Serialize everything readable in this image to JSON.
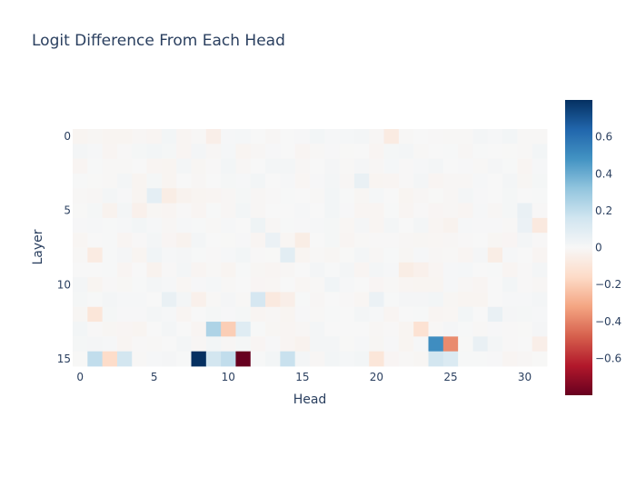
{
  "chart_data": {
    "type": "heatmap",
    "title": "Logit Difference From Each Head",
    "xlabel": "Head",
    "ylabel": "Layer",
    "x_range": [
      0,
      31
    ],
    "y_range": [
      0,
      15
    ],
    "x_ticks": [
      "0",
      "5",
      "10",
      "15",
      "20",
      "25",
      "30"
    ],
    "y_ticks": [
      "0",
      "5",
      "10",
      "15"
    ],
    "colorscale": "RdBu",
    "zmin": -0.8,
    "zmax": 0.8,
    "colorbar_ticks": [
      "0.6",
      "0.4",
      "0.2",
      "0",
      "−0.2",
      "−0.4",
      "−0.6"
    ],
    "colorbar_tick_values": [
      0.6,
      0.4,
      0.2,
      0,
      -0.2,
      -0.4,
      -0.6
    ],
    "cells": [
      {
        "layer": 0,
        "head": 9,
        "value": -0.05
      },
      {
        "layer": 0,
        "head": 21,
        "value": -0.07
      },
      {
        "layer": 0,
        "head": 3,
        "value": -0.02
      },
      {
        "layer": 1,
        "head": 5,
        "value": 0.02
      },
      {
        "layer": 3,
        "head": 19,
        "value": 0.06
      },
      {
        "layer": 4,
        "head": 5,
        "value": 0.08
      },
      {
        "layer": 4,
        "head": 6,
        "value": -0.06
      },
      {
        "layer": 4,
        "head": 4,
        "value": -0.02
      },
      {
        "layer": 4,
        "head": 7,
        "value": -0.03
      },
      {
        "layer": 5,
        "head": 4,
        "value": -0.04
      },
      {
        "layer": 5,
        "head": 30,
        "value": 0.06
      },
      {
        "layer": 5,
        "head": 2,
        "value": -0.03
      },
      {
        "layer": 6,
        "head": 31,
        "value": -0.08
      },
      {
        "layer": 6,
        "head": 30,
        "value": 0.05
      },
      {
        "layer": 6,
        "head": 12,
        "value": 0.04
      },
      {
        "layer": 6,
        "head": 25,
        "value": -0.03
      },
      {
        "layer": 7,
        "head": 13,
        "value": 0.05
      },
      {
        "layer": 7,
        "head": 15,
        "value": -0.06
      },
      {
        "layer": 7,
        "head": 7,
        "value": -0.03
      },
      {
        "layer": 8,
        "head": 1,
        "value": -0.07
      },
      {
        "layer": 8,
        "head": 14,
        "value": 0.09
      },
      {
        "layer": 8,
        "head": 28,
        "value": -0.06
      },
      {
        "layer": 8,
        "head": 5,
        "value": 0.03
      },
      {
        "layer": 9,
        "head": 22,
        "value": -0.06
      },
      {
        "layer": 9,
        "head": 23,
        "value": -0.04
      },
      {
        "layer": 9,
        "head": 5,
        "value": -0.03
      },
      {
        "layer": 10,
        "head": 17,
        "value": 0.03
      },
      {
        "layer": 11,
        "head": 6,
        "value": 0.06
      },
      {
        "layer": 11,
        "head": 12,
        "value": 0.14
      },
      {
        "layer": 11,
        "head": 13,
        "value": -0.08
      },
      {
        "layer": 11,
        "head": 14,
        "value": -0.05
      },
      {
        "layer": 11,
        "head": 8,
        "value": -0.04
      },
      {
        "layer": 11,
        "head": 20,
        "value": 0.05
      },
      {
        "layer": 12,
        "head": 1,
        "value": -0.1
      },
      {
        "layer": 12,
        "head": 28,
        "value": 0.06
      },
      {
        "layer": 13,
        "head": 9,
        "value": 0.25
      },
      {
        "layer": 13,
        "head": 10,
        "value": -0.2
      },
      {
        "layer": 13,
        "head": 11,
        "value": 0.1
      },
      {
        "layer": 13,
        "head": 23,
        "value": -0.12
      },
      {
        "layer": 14,
        "head": 24,
        "value": 0.5
      },
      {
        "layer": 14,
        "head": 25,
        "value": -0.38
      },
      {
        "layer": 14,
        "head": 27,
        "value": 0.06
      },
      {
        "layer": 14,
        "head": 31,
        "value": -0.05
      },
      {
        "layer": 14,
        "head": 15,
        "value": -0.03
      },
      {
        "layer": 15,
        "head": 1,
        "value": 0.2
      },
      {
        "layer": 15,
        "head": 2,
        "value": -0.15
      },
      {
        "layer": 15,
        "head": 3,
        "value": 0.15
      },
      {
        "layer": 15,
        "head": 8,
        "value": 0.8
      },
      {
        "layer": 15,
        "head": 9,
        "value": 0.15
      },
      {
        "layer": 15,
        "head": 10,
        "value": 0.2
      },
      {
        "layer": 15,
        "head": 11,
        "value": -0.8
      },
      {
        "layer": 15,
        "head": 14,
        "value": 0.18
      },
      {
        "layer": 15,
        "head": 20,
        "value": -0.1
      },
      {
        "layer": 15,
        "head": 24,
        "value": 0.15
      },
      {
        "layer": 15,
        "head": 25,
        "value": 0.12
      }
    ]
  }
}
